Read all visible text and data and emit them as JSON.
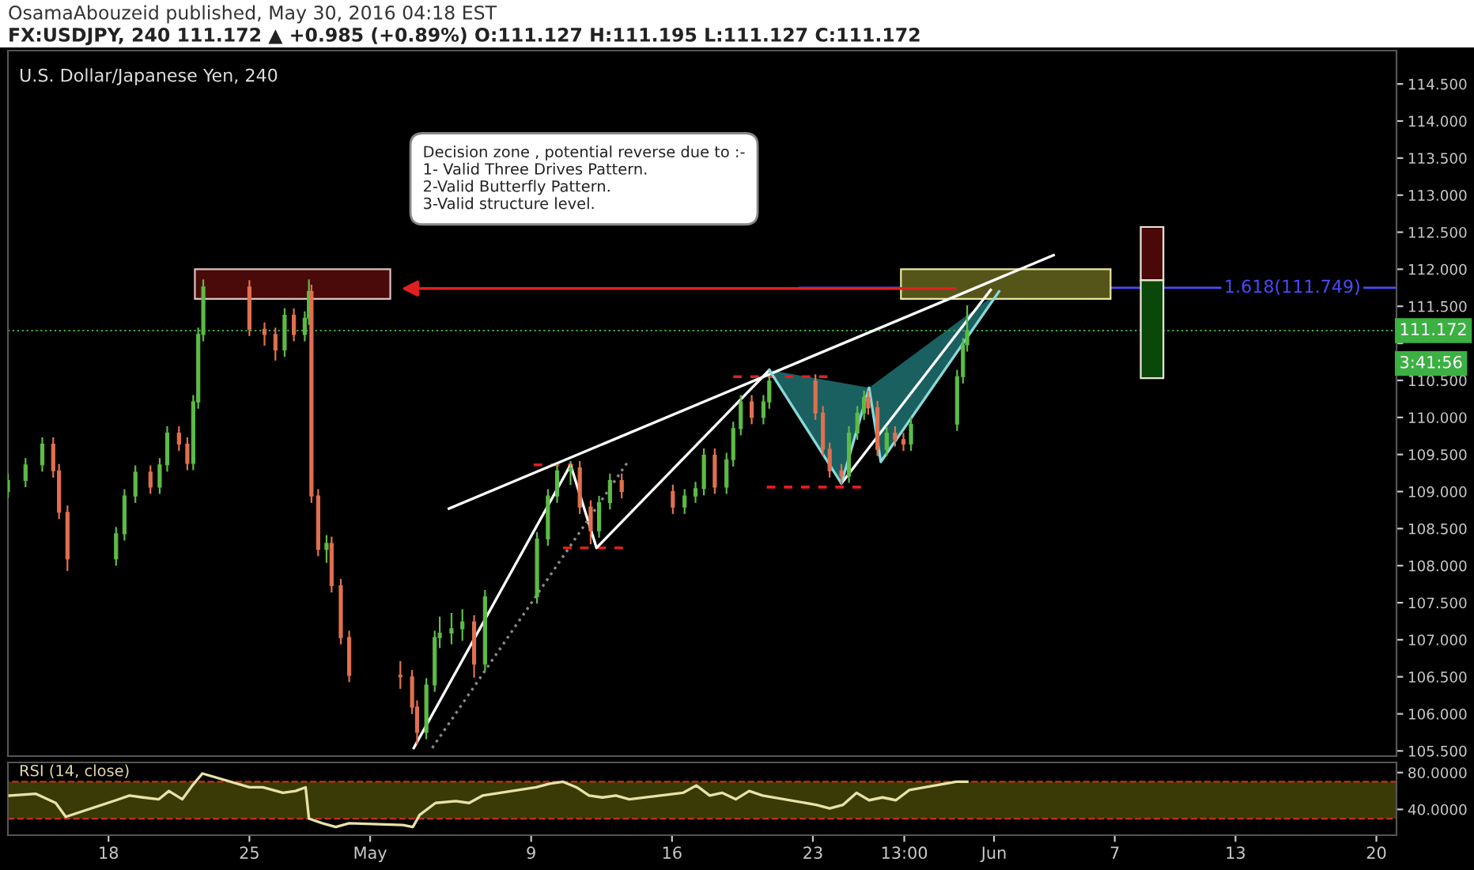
{
  "chart_data": [
    {
      "type": "candlestick",
      "title": "OsamaAbouzeid published, May 30, 2016 04:18 EST",
      "subtitle": "FX:USDJPY, 240 111.172 ▲ +0.985 (+0.89%) O:111.127 H:111.195 L:111.127 C:111.172",
      "x": [
        "2016-04-13T00:00",
        "2016-04-13T21:00",
        "2016-04-14T17:00",
        "2016-04-15T06:00",
        "2016-04-15T13:00",
        "2016-04-15T23:00",
        "2016-04-18T09:00",
        "2016-04-18T19:00",
        "2016-04-19T08:00",
        "2016-04-20T02:00",
        "2016-04-20T13:00",
        "2016-04-20T22:00",
        "2016-04-21T12:00",
        "2016-04-21T22:00",
        "2016-04-22T05:00",
        "2016-04-22T11:00",
        "2016-04-22T17:00",
        "2016-04-25T00:00",
        "2016-04-25T18:00",
        "2016-04-26T07:00",
        "2016-04-26T18:00",
        "2016-04-27T05:00",
        "2016-04-27T18:00",
        "2016-04-27T23:00",
        "2016-04-28T02:00",
        "2016-04-28T10:00",
        "2016-04-28T20:00",
        "2016-04-29T02:00",
        "2016-04-29T13:00",
        "2016-04-29T23:00",
        "2016-05-02T12:00",
        "2016-05-03T02:00",
        "2016-05-03T08:00",
        "2016-05-03T19:00",
        "2016-05-04T05:00",
        "2016-05-04T11:00",
        "2016-05-05T01:00",
        "2016-05-05T14:00",
        "2016-05-06T04:00",
        "2016-05-06T17:00",
        "2016-05-09T07:00",
        "2016-05-09T20:00",
        "2016-05-10T07:00",
        "2016-05-10T23:00",
        "2016-05-11T10:00",
        "2016-05-11T23:00",
        "2016-05-12T09:00",
        "2016-05-12T22:00",
        "2016-05-13T12:00",
        "2016-05-16T01:00",
        "2016-05-16T15:00",
        "2016-05-17T04:00",
        "2016-05-17T14:00",
        "2016-05-18T03:00",
        "2016-05-18T17:00",
        "2016-05-19T01:00",
        "2016-05-19T10:00",
        "2016-05-19T23:00",
        "2016-05-20T13:00",
        "2016-05-20T20:00",
        "2016-05-23T03:00",
        "2016-05-23T12:00",
        "2016-05-23T20:00",
        "2016-05-24T10:00",
        "2016-05-24T19:00",
        "2016-05-25T05:00",
        "2016-05-25T13:00",
        "2016-05-25T18:00",
        "2016-05-26T05:00",
        "2016-05-26T16:00",
        "2016-05-27T02:00",
        "2016-05-27T12:00",
        "2016-05-27T21:00",
        "2016-05-30T04:00",
        "2016-05-30T11:00",
        "2016-05-30T16:00"
      ],
      "ohlc": [
        [
          109.0,
          109.23,
          108.92,
          109.15
        ],
        [
          109.15,
          109.44,
          109.07,
          109.36
        ],
        [
          109.36,
          109.72,
          109.28,
          109.64
        ],
        [
          109.64,
          109.72,
          109.2,
          109.28
        ],
        [
          109.28,
          109.36,
          108.64,
          108.72
        ],
        [
          108.72,
          108.8,
          107.94,
          108.09
        ],
        [
          108.09,
          108.51,
          108.01,
          108.43
        ],
        [
          108.43,
          109.02,
          108.35,
          108.94
        ],
        [
          108.94,
          109.34,
          108.86,
          109.26
        ],
        [
          109.26,
          109.34,
          108.98,
          109.06
        ],
        [
          109.06,
          109.44,
          108.98,
          109.36
        ],
        [
          109.36,
          109.87,
          109.28,
          109.79
        ],
        [
          109.79,
          109.87,
          109.56,
          109.64
        ],
        [
          109.64,
          109.72,
          109.3,
          109.38
        ],
        [
          109.38,
          110.29,
          109.3,
          110.21
        ],
        [
          110.21,
          111.2,
          110.13,
          111.12
        ],
        [
          111.12,
          111.85,
          111.04,
          111.76
        ],
        [
          111.76,
          111.84,
          111.11,
          111.19
        ],
        [
          111.19,
          111.27,
          110.98,
          111.12
        ],
        [
          111.12,
          111.2,
          110.78,
          110.91
        ],
        [
          110.91,
          111.46,
          110.83,
          111.38
        ],
        [
          111.38,
          111.46,
          111.04,
          111.12
        ],
        [
          111.12,
          111.42,
          111.04,
          111.34
        ],
        [
          111.34,
          111.85,
          111.26,
          111.7
        ],
        [
          111.7,
          111.78,
          108.86,
          108.94
        ],
        [
          108.94,
          109.02,
          108.14,
          108.22
        ],
        [
          108.22,
          108.4,
          108.05,
          108.3
        ],
        [
          108.3,
          108.38,
          107.65,
          107.73
        ],
        [
          107.73,
          107.81,
          106.95,
          107.03
        ],
        [
          107.03,
          107.11,
          106.44,
          106.52
        ],
        [
          106.52,
          106.7,
          106.35,
          106.5
        ],
        [
          106.5,
          106.58,
          106.01,
          106.09
        ],
        [
          106.09,
          106.17,
          105.6,
          105.75
        ],
        [
          105.75,
          106.47,
          105.67,
          106.39
        ],
        [
          106.39,
          107.11,
          106.31,
          107.03
        ],
        [
          107.03,
          107.3,
          106.9,
          107.09
        ],
        [
          107.09,
          107.35,
          106.95,
          107.15
        ],
        [
          107.15,
          107.4,
          107.0,
          107.24
        ],
        [
          107.24,
          107.32,
          106.5,
          106.67
        ],
        [
          106.67,
          107.66,
          106.59,
          107.58
        ],
        [
          107.58,
          108.44,
          107.5,
          108.36
        ],
        [
          108.36,
          109.02,
          108.28,
          108.94
        ],
        [
          108.94,
          109.36,
          108.86,
          109.28
        ],
        [
          109.28,
          109.4,
          109.1,
          109.32
        ],
        [
          109.32,
          109.4,
          108.71,
          108.79
        ],
        [
          108.79,
          108.87,
          108.3,
          108.47
        ],
        [
          108.47,
          108.93,
          108.39,
          108.85
        ],
        [
          108.85,
          109.23,
          108.77,
          109.15
        ],
        [
          109.15,
          109.23,
          108.92,
          109.0
        ],
        [
          109.0,
          109.08,
          108.71,
          108.79
        ],
        [
          108.79,
          109.02,
          108.71,
          108.94
        ],
        [
          108.94,
          109.12,
          108.86,
          109.04
        ],
        [
          109.04,
          109.57,
          108.96,
          109.49
        ],
        [
          109.49,
          109.57,
          108.98,
          109.06
        ],
        [
          109.06,
          109.51,
          108.98,
          109.43
        ],
        [
          109.43,
          109.93,
          109.35,
          109.85
        ],
        [
          109.85,
          110.29,
          109.77,
          110.21
        ],
        [
          110.21,
          110.29,
          109.92,
          110.0
        ],
        [
          110.0,
          110.29,
          109.92,
          110.21
        ],
        [
          110.21,
          110.55,
          110.13,
          110.49
        ],
        [
          110.49,
          110.57,
          109.98,
          110.06
        ],
        [
          110.06,
          110.14,
          109.49,
          109.57
        ],
        [
          109.57,
          109.65,
          109.2,
          109.28
        ],
        [
          109.28,
          109.36,
          109.1,
          109.21
        ],
        [
          109.21,
          109.87,
          109.13,
          109.79
        ],
        [
          109.79,
          110.14,
          109.71,
          110.06
        ],
        [
          110.06,
          110.35,
          109.98,
          110.27
        ],
        [
          110.27,
          110.35,
          110.05,
          110.13
        ],
        [
          110.13,
          110.21,
          109.49,
          109.57
        ],
        [
          109.57,
          109.87,
          109.49,
          109.79
        ],
        [
          109.79,
          109.87,
          109.62,
          109.7
        ],
        [
          109.7,
          109.78,
          109.56,
          109.64
        ],
        [
          109.64,
          109.99,
          109.56,
          109.91
        ],
        [
          109.91,
          110.63,
          109.83,
          110.55
        ],
        [
          110.55,
          111.06,
          110.47,
          110.98
        ],
        [
          110.98,
          111.5,
          110.9,
          111.172
        ]
      ],
      "colors": [
        "#5dbb46",
        "#5dbb46",
        "#5dbb46",
        "#e07050",
        "#e07050",
        "#e07050",
        "#5dbb46",
        "#5dbb46",
        "#5dbb46",
        "#e07050",
        "#5dbb46",
        "#5dbb46",
        "#e07050",
        "#e07050",
        "#5dbb46",
        "#5dbb46",
        "#5dbb46",
        "#e07050",
        "#e07050",
        "#e07050",
        "#5dbb46",
        "#e07050",
        "#5dbb46",
        "#5dbb46",
        "#e07050",
        "#e07050",
        "#5dbb46",
        "#e07050",
        "#e07050",
        "#e07050",
        "#e07050",
        "#e07050",
        "#e07050",
        "#5dbb46",
        "#5dbb46",
        "#5dbb46",
        "#5dbb46",
        "#5dbb46",
        "#e07050",
        "#5dbb46",
        "#5dbb46",
        "#5dbb46",
        "#5dbb46",
        "#5dbb46",
        "#e07050",
        "#e07050",
        "#5dbb46",
        "#5dbb46",
        "#e07050",
        "#e07050",
        "#5dbb46",
        "#5dbb46",
        "#5dbb46",
        "#e07050",
        "#5dbb46",
        "#5dbb46",
        "#5dbb46",
        "#e07050",
        "#5dbb46",
        "#5dbb46",
        "#e07050",
        "#e07050",
        "#e07050",
        "#e07050",
        "#5dbb46",
        "#5dbb46",
        "#5dbb46",
        "#e07050",
        "#e07050",
        "#5dbb46",
        "#e07050",
        "#e07050",
        "#5dbb46",
        "#5dbb46",
        "#5dbb46",
        "#5dbb46"
      ],
      "series": [
        {
          "type": "line",
          "color": "#ffffff",
          "x": [
            "2016-05-04T22:00",
            "2016-06-03T23:00"
          ],
          "values": [
            108.77,
            112.19
          ]
        },
        {
          "type": "line",
          "color": "#ffffff",
          "x": [
            "2016-05-03T04:00",
            "2016-05-10T23:00",
            "2016-05-12T06:00",
            "2016-05-20T20:00"
          ],
          "values": [
            105.54,
            109.36,
            108.24,
            110.64
          ]
        },
        {
          "type": "line",
          "color": "#ffffff",
          "x": [
            "2016-05-24T10:00",
            "2016-05-31T20:00"
          ],
          "values": [
            109.11,
            111.72
          ]
        },
        {
          "type": "line",
          "color": "#8ad8d8",
          "x": [
            "2016-05-20T20:00",
            "2016-05-24T10:00",
            "2016-05-25T19:00",
            "2016-05-26T09:00",
            "2016-06-01T06:00"
          ],
          "values": [
            110.64,
            109.11,
            110.4,
            109.4,
            111.7
          ]
        },
        {
          "type": "line",
          "color": "#888888",
          "line_style": "dotted",
          "x": [
            "2016-05-04T02:00",
            "2016-05-13T21:00"
          ],
          "values": [
            105.54,
            109.43
          ]
        }
      ],
      "xlim": [
        "2016-04-13",
        "2016-06-21"
      ],
      "ylim": [
        105.43,
        114.95
      ],
      "yticks": [
        {
          "value": 105.5,
          "label": "105.500"
        },
        {
          "value": 106,
          "label": "106.000"
        },
        {
          "value": 106.5,
          "label": "106.500"
        },
        {
          "value": 107,
          "label": "107.000"
        },
        {
          "value": 107.5,
          "label": "107.500"
        },
        {
          "value": 108,
          "label": "108.000"
        },
        {
          "value": 108.5,
          "label": "108.500"
        },
        {
          "value": 109,
          "label": "109.000"
        },
        {
          "value": 109.5,
          "label": "109.500"
        },
        {
          "value": 110,
          "label": "110.000"
        },
        {
          "value": 110.5,
          "label": "110.500"
        },
        {
          "value": 111,
          "label": null
        },
        {
          "value": 111.5,
          "label": "111.500"
        },
        {
          "value": 112,
          "label": "112.000"
        },
        {
          "value": 112.5,
          "label": "112.500"
        },
        {
          "value": 113,
          "label": "113.000"
        },
        {
          "value": 113.5,
          "label": "113.500"
        },
        {
          "value": 114,
          "label": "114.000"
        },
        {
          "value": 114.5,
          "label": "114.500"
        }
      ],
      "tick_labels": "y",
      "ref_lines": [
        {
          "axis": "y",
          "value": 111.172,
          "label": "111.172",
          "color": "#3cb043",
          "line_style": "dotted"
        },
        {
          "axis": "y",
          "value": 111.749,
          "label": "1.618(111.749)",
          "color": "#4a4aff",
          "line_style": "solid"
        }
      ],
      "annotations": [
        "U.S. Dollar/Japanese Yen, 240",
        "Decision zone , potential reverse due to :-\n1- Valid Three Drives Pattern.\n2-Valid Butterfly Pattern.\n3-Valid structure level.",
        "3:41:56"
      ]
    },
    {
      "type": "line",
      "title": "RSI (14, close)",
      "x": [
        "2016-04-13T02:00",
        "2016-04-14T09:00",
        "2016-04-15T09:00",
        "2016-04-15T21:00",
        "2016-04-18T09:00",
        "2016-04-19T01:00",
        "2016-04-19T17:00",
        "2016-04-20T12:00",
        "2016-04-21T00:00",
        "2016-04-21T16:00",
        "2016-04-22T04:00",
        "2016-04-22T16:00",
        "2016-04-25T00:00",
        "2016-04-25T16:00",
        "2016-04-26T16:00",
        "2016-04-27T07:00",
        "2016-04-27T19:00",
        "2016-04-27T23:00",
        "2016-04-28T15:00",
        "2016-04-29T07:00",
        "2016-04-29T23:00",
        "2016-05-02T15:00",
        "2016-05-03T03:00",
        "2016-05-03T11:00",
        "2016-05-04T06:00",
        "2016-05-05T06:00",
        "2016-05-05T22:00",
        "2016-05-06T14:00",
        "2016-05-09T06:00",
        "2016-05-09T22:00",
        "2016-05-10T14:00",
        "2016-05-11T06:00",
        "2016-05-11T21:00",
        "2016-05-12T13:00",
        "2016-05-13T05:00",
        "2016-05-13T21:00",
        "2016-05-16T13:00",
        "2016-05-17T05:00",
        "2016-05-17T21:00",
        "2016-05-18T12:00",
        "2016-05-19T04:00",
        "2016-05-19T20:00",
        "2016-05-20T12:00",
        "2016-05-23T04:00",
        "2016-05-23T20:00",
        "2016-05-24T12:00",
        "2016-05-25T04:00",
        "2016-05-25T19:00",
        "2016-05-26T11:00",
        "2016-05-27T03:00",
        "2016-05-27T19:00",
        "2016-05-30T03:00",
        "2016-05-30T16:00"
      ],
      "series": [
        {
          "color": "#e8e2a8",
          "values": [
            55,
            57,
            47,
            32,
            50,
            55,
            53,
            51,
            60,
            51,
            66,
            79,
            64,
            64,
            58,
            60,
            64,
            30,
            25,
            21,
            25,
            23,
            21,
            34,
            47,
            49,
            47,
            55,
            64,
            68,
            70,
            64,
            55,
            53,
            55,
            51,
            58,
            66,
            55,
            58,
            51,
            60,
            55,
            45,
            41,
            45,
            58,
            50,
            53,
            50,
            61,
            70,
            70
          ]
        }
      ],
      "xlim": [
        "2016-04-13",
        "2016-06-21"
      ],
      "ylim": [
        12,
        91
      ],
      "xticks": [
        {
          "value": "2016-04-18",
          "label": "18"
        },
        {
          "value": "2016-04-25",
          "label": "25"
        },
        {
          "value": "2016-05-01",
          "label": "May"
        },
        {
          "value": "2016-05-09",
          "label": "9"
        },
        {
          "value": "2016-05-16",
          "label": "16"
        },
        {
          "value": "2016-05-23",
          "label": "23"
        },
        {
          "value": "2016-05-27T13:00",
          "label": "13:00"
        },
        {
          "value": "2016-06-01",
          "label": "Jun"
        },
        {
          "value": "2016-06-07",
          "label": "7"
        },
        {
          "value": "2016-06-13",
          "label": "13"
        },
        {
          "value": "2016-06-20",
          "label": "20"
        }
      ],
      "yticks": [
        {
          "value": 80,
          "label": "80.0000"
        },
        {
          "value": 40,
          "label": "40.0000"
        }
      ],
      "bands": [
        {
          "axis": "y",
          "from": 30,
          "to": 70,
          "color": "#3a3a06"
        }
      ]
    }
  ]
}
